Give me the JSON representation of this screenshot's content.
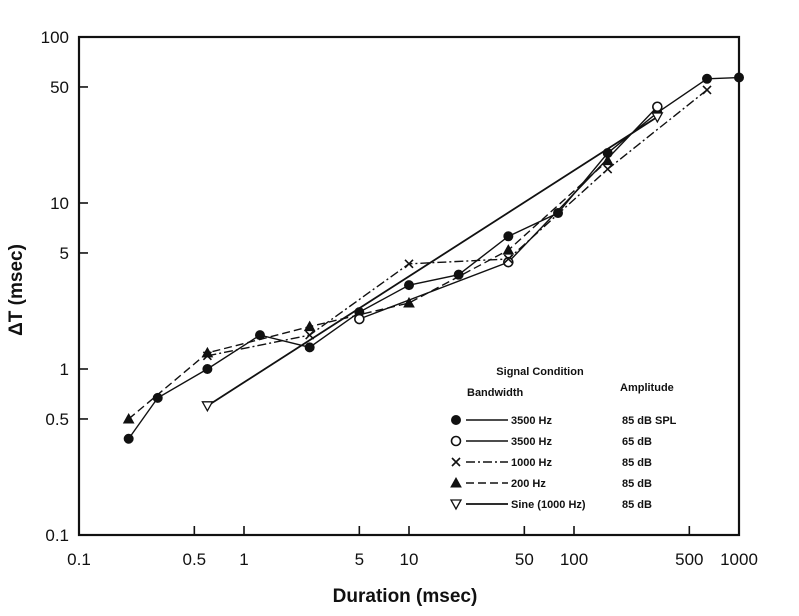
{
  "chart_data": {
    "type": "line",
    "xlabel": "Duration (msec)",
    "ylabel": "ΔT (msec)",
    "x_scale": "log",
    "y_scale": "log",
    "xlim": [
      0.1,
      1000
    ],
    "ylim": [
      0.1,
      100
    ],
    "x_ticks": [
      0.1,
      0.5,
      1,
      5,
      10,
      50,
      100,
      500,
      1000
    ],
    "x_tick_labels": [
      "0.1",
      "0.5",
      "1",
      "5",
      "10",
      "50",
      "100",
      "500",
      "1000"
    ],
    "y_ticks": [
      0.1,
      0.5,
      1,
      5,
      10,
      50,
      100
    ],
    "y_tick_labels": [
      "0.1",
      "0.5",
      "1",
      "5",
      "10",
      "50",
      "100"
    ],
    "grid": false,
    "legend_position": "bottom-right",
    "legend": {
      "title": "Signal Condition",
      "col1_header": "Bandwidth",
      "col2_header": "Amplitude"
    },
    "series": [
      {
        "name": "3500 Hz",
        "amplitude": "85 dB SPL",
        "marker": "filled-circle",
        "line_style": "solid",
        "x": [
          0.2,
          0.3,
          0.6,
          1.25,
          2.5,
          5,
          10,
          20,
          40,
          80,
          160,
          320,
          640,
          1000
        ],
        "y": [
          0.38,
          0.67,
          1.0,
          1.6,
          1.35,
          2.2,
          3.2,
          3.7,
          6.3,
          8.7,
          20,
          35,
          56,
          57
        ]
      },
      {
        "name": "3500 Hz",
        "amplitude": "65 dB",
        "marker": "open-circle",
        "line_style": "solid",
        "x": [
          5,
          40,
          320
        ],
        "y": [
          2.0,
          4.4,
          38
        ]
      },
      {
        "name": "1000 Hz",
        "amplitude": "85 dB",
        "marker": "x",
        "line_style": "dash-dot",
        "x": [
          0.6,
          2.5,
          10,
          40,
          160,
          640
        ],
        "y": [
          1.2,
          1.6,
          4.3,
          4.6,
          16,
          48
        ]
      },
      {
        "name": "200 Hz",
        "amplitude": "85 dB",
        "marker": "filled-triangle",
        "line_style": "dashed",
        "x": [
          0.2,
          0.6,
          2.5,
          10,
          40,
          160
        ],
        "y": [
          0.5,
          1.25,
          1.8,
          2.5,
          5.2,
          18
        ]
      },
      {
        "name": "Sine (1000 Hz)",
        "amplitude": "85 dB",
        "marker": "open-triangle-down",
        "line_style": "solid-thick",
        "x": [
          0.6,
          320
        ],
        "y": [
          0.6,
          33
        ]
      }
    ]
  }
}
